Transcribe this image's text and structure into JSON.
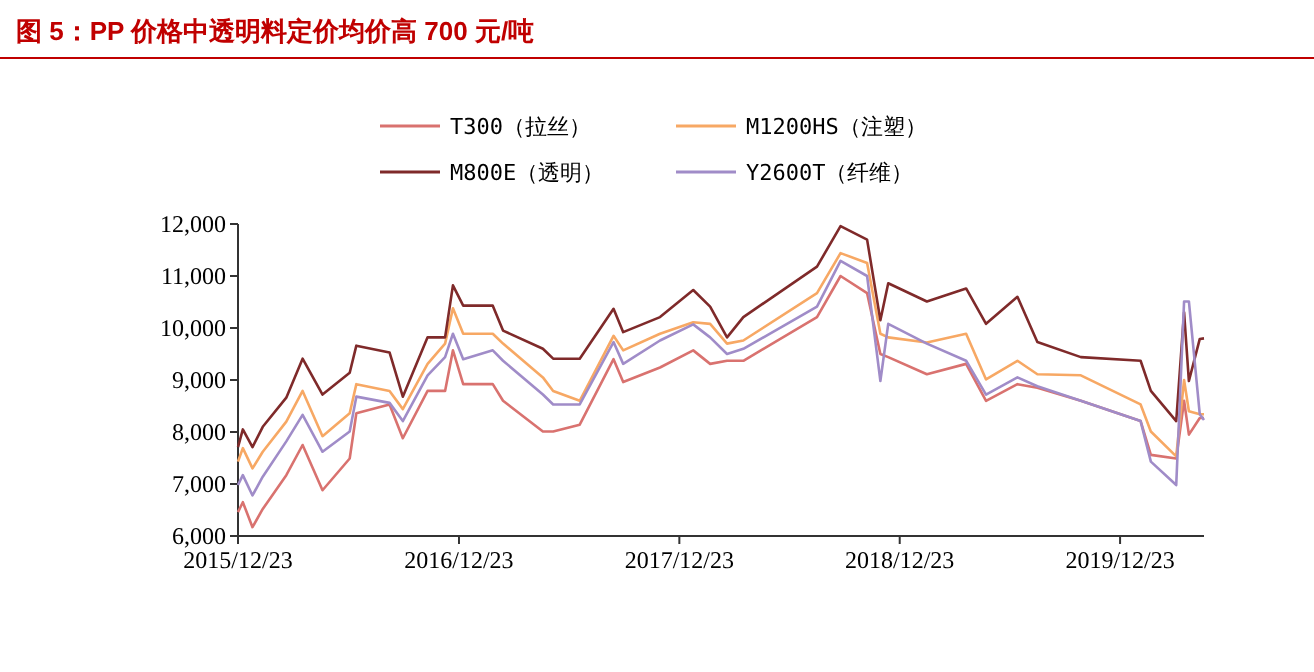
{
  "chart_data": {
    "type": "line",
    "title": "图 5：PP 价格中透明料定价均价高 700 元/吨",
    "legend": "top",
    "x": [
      "2015-12-23",
      "2015-12-31",
      "2016-01-16",
      "2016-02-02",
      "2016-03-12",
      "2016-04-08",
      "2016-05-11",
      "2016-06-25",
      "2016-07-06",
      "2016-08-30",
      "2016-09-21",
      "2016-11-01",
      "2016-11-30",
      "2016-12-13",
      "2016-12-30",
      "2017-02-17",
      "2017-03-06",
      "2017-05-11",
      "2017-05-28",
      "2017-07-11",
      "2017-09-05",
      "2017-09-21",
      "2017-11-21",
      "2018-01-15",
      "2018-02-12",
      "2018-03-12",
      "2018-04-08",
      "2018-08-08",
      "2018-09-16",
      "2018-10-30",
      "2018-11-21",
      "2018-12-04",
      "2019-02-06",
      "2019-04-12",
      "2019-05-15",
      "2019-07-06",
      "2019-08-08",
      "2019-10-19",
      "2020-01-26",
      "2020-02-12",
      "2020-03-25",
      "2020-04-07",
      "2020-04-15",
      "2020-05-03",
      "2020-05-10"
    ],
    "xlim": [
      "2015-12-23",
      "2020-05-10"
    ],
    "xticks": [
      {
        "value": "2015-12-23",
        "label": "2015/12/23"
      },
      {
        "value": "2016-12-23",
        "label": "2016/12/23"
      },
      {
        "value": "2017-12-23",
        "label": "2017/12/23"
      },
      {
        "value": "2018-12-23",
        "label": "2018/12/23"
      },
      {
        "value": "2019-12-23",
        "label": "2019/12/23"
      }
    ],
    "ylim": [
      6000,
      12000
    ],
    "yticks": [
      {
        "value": 6000,
        "label": "6,000"
      },
      {
        "value": 7000,
        "label": "7,000"
      },
      {
        "value": 8000,
        "label": "8,000"
      },
      {
        "value": 9000,
        "label": "9,000"
      },
      {
        "value": 10000,
        "label": "10,000"
      },
      {
        "value": 11000,
        "label": "11,000"
      },
      {
        "value": 12000,
        "label": "12,000"
      }
    ],
    "series": [
      {
        "name": "T300（拉丝）",
        "color": "#d9726f",
        "values": [
          6460,
          6650,
          6170,
          6520,
          7170,
          7750,
          6880,
          7490,
          8360,
          8530,
          7880,
          8790,
          8790,
          9570,
          8920,
          8920,
          8600,
          8010,
          8010,
          8140,
          9400,
          8960,
          9240,
          9570,
          9310,
          9370,
          9370,
          10210,
          11000,
          10670,
          9500,
          9440,
          9110,
          9310,
          8600,
          8920,
          8850,
          8600,
          8210,
          7560,
          7490,
          8600,
          7950,
          8270,
          8270
        ]
      },
      {
        "name": "M1200HS（注塑）",
        "color": "#f7a864",
        "values": [
          7430,
          7690,
          7300,
          7620,
          8200,
          8790,
          7920,
          8360,
          8920,
          8790,
          8440,
          9310,
          9700,
          10380,
          9890,
          9890,
          9700,
          9050,
          8790,
          8600,
          9850,
          9570,
          9890,
          10110,
          10080,
          9700,
          9760,
          10670,
          11440,
          11250,
          9890,
          9820,
          9720,
          9890,
          9010,
          9370,
          9110,
          9090,
          8530,
          8010,
          7530,
          9000,
          8400,
          8340,
          8340
        ]
      },
      {
        "name": "M800E（透明）",
        "color": "#7f2a2a",
        "values": [
          7710,
          8050,
          7710,
          8100,
          8660,
          9410,
          8720,
          9140,
          9660,
          9530,
          8680,
          9820,
          9820,
          10820,
          10430,
          10430,
          9950,
          9600,
          9410,
          9410,
          10370,
          9920,
          10210,
          10730,
          10410,
          9820,
          10210,
          11180,
          11960,
          11700,
          10150,
          10860,
          10510,
          10760,
          10080,
          10600,
          9730,
          9440,
          9370,
          8790,
          8210,
          10300,
          8980,
          9790,
          9800
        ]
      },
      {
        "name": "Y2600T（纤维）",
        "color": "#a08cc8",
        "values": [
          6980,
          7170,
          6780,
          7140,
          7820,
          8330,
          7620,
          8010,
          8680,
          8560,
          8210,
          9090,
          9440,
          9890,
          9400,
          9570,
          9370,
          8720,
          8530,
          8530,
          9730,
          9310,
          9760,
          10070,
          9820,
          9500,
          9600,
          10410,
          11290,
          11000,
          8980,
          10080,
          9700,
          9370,
          8720,
          9050,
          8880,
          8600,
          8210,
          7430,
          6980,
          10510,
          10510,
          8340,
          8230
        ]
      }
    ]
  }
}
